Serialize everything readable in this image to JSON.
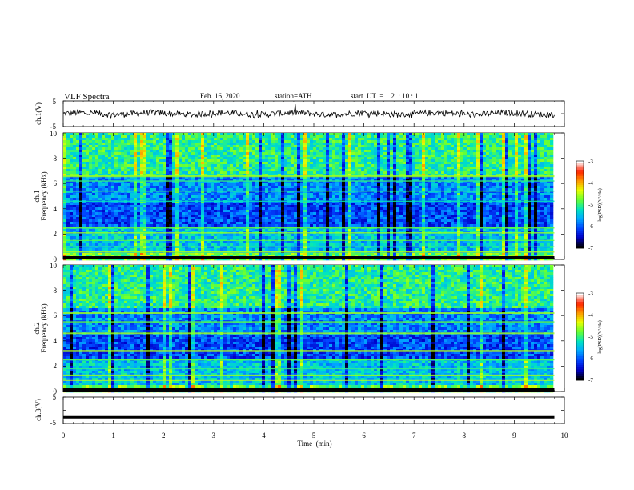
{
  "header": {
    "title": "VLF  Spectra",
    "date": "Feb. 16, 2020",
    "station": "station=ATH",
    "start_ut": "start  UT  =    2  : 10 : 1"
  },
  "colors": {
    "colormap": [
      "#000000",
      "#0000c8",
      "#0044ff",
      "#00aaff",
      "#00e5c0",
      "#66ff33",
      "#e8ff00",
      "#ff9900",
      "#ff2200",
      "#ffffff"
    ]
  },
  "chart_data": [
    {
      "type": "line",
      "name": "ch1-waveform",
      "ylabel": "ch.1(V)",
      "ylim": [
        -5,
        5
      ],
      "y_tick_labels": [
        "5",
        "-5"
      ],
      "xlim": [
        0,
        10
      ],
      "x_end": 9.8,
      "baseline": 0.0,
      "noise_amplitude": 1.2
    },
    {
      "type": "heatmap",
      "name": "ch1-spectrogram",
      "ylabel": "ch.1\nFrequency (kHz)",
      "ylabel_line1": "ch.1",
      "ylabel_line2": "Frequency (kHz)",
      "ylim": [
        0,
        10
      ],
      "y_tick_labels": [
        "0",
        "2",
        "4",
        "6",
        "8",
        "10"
      ],
      "xlim": [
        0,
        10
      ],
      "x_end": 9.8,
      "colorbar": {
        "label": "log(PSD)(V²/Hz)",
        "range": [
          -7,
          -3
        ],
        "tick_labels": [
          "-3",
          "-4",
          "-5",
          "-6",
          "-7"
        ]
      }
    },
    {
      "type": "heatmap",
      "name": "ch2-spectrogram",
      "ylabel_line1": "ch.2",
      "ylabel_line2": "Frequency (kHz)",
      "ylim": [
        0,
        10
      ],
      "y_tick_labels": [
        "0",
        "2",
        "4",
        "6",
        "8",
        "10"
      ],
      "xlim": [
        0,
        10
      ],
      "x_end": 9.8,
      "colorbar": {
        "label": "log(PSD)(V²/Hz)",
        "range": [
          -7,
          -3
        ],
        "tick_labels": [
          "-3",
          "-4",
          "-5",
          "-6",
          "-7"
        ]
      }
    },
    {
      "type": "line",
      "name": "ch3-waveform",
      "ylabel": "ch.3(V)",
      "ylim": [
        -5,
        5
      ],
      "y_tick_labels": [
        "5",
        "-5"
      ],
      "xlim": [
        0,
        10
      ],
      "x_end": 9.8,
      "baseline": -2.5,
      "noise_amplitude": 0.0
    }
  ],
  "x_axis": {
    "xlabel": "Time  (min)",
    "tick_labels": [
      "0",
      "1",
      "2",
      "3",
      "4",
      "5",
      "6",
      "7",
      "8",
      "9",
      "10"
    ]
  }
}
